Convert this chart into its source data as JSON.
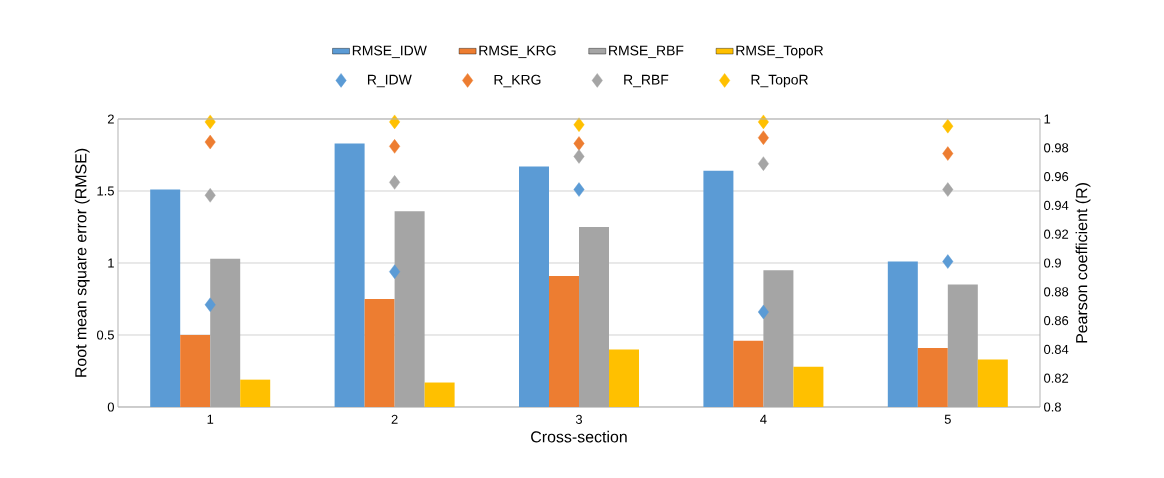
{
  "chart_data": {
    "type": "bar",
    "xlabel": "Cross-section",
    "ylabel": "Root mean square error (RMSE)",
    "y2label": "Pearson coefficient (R)",
    "categories": [
      "1",
      "2",
      "3",
      "4",
      "5"
    ],
    "series": [
      {
        "name": "RMSE_IDW",
        "color": "#5b9bd5",
        "values": [
          1.51,
          1.83,
          1.67,
          1.64,
          1.01
        ]
      },
      {
        "name": "RMSE_KRG",
        "color": "#ed7d31",
        "values": [
          0.5,
          0.75,
          0.91,
          0.46,
          0.41
        ]
      },
      {
        "name": "RMSE_RBF",
        "color": "#a5a5a5",
        "values": [
          1.03,
          1.36,
          1.25,
          0.95,
          0.85
        ]
      },
      {
        "name": "RMSE_TopoR",
        "color": "#ffc000",
        "values": [
          0.19,
          0.17,
          0.4,
          0.28,
          0.33
        ]
      },
      {
        "name": "R_IDW",
        "type": "scatter",
        "axis": "y2",
        "marker": "diamond",
        "color": "#5b9bd5",
        "values": [
          0.871,
          0.894,
          0.951,
          0.866,
          0.901
        ]
      },
      {
        "name": "R_KRG",
        "type": "scatter",
        "axis": "y2",
        "marker": "diamond",
        "color": "#ed7d31",
        "values": [
          0.984,
          0.981,
          0.983,
          0.987,
          0.976
        ]
      },
      {
        "name": "R_RBF",
        "type": "scatter",
        "axis": "y2",
        "marker": "diamond",
        "color": "#a5a5a5",
        "values": [
          0.947,
          0.956,
          0.974,
          0.969,
          0.951
        ]
      },
      {
        "name": "R_TopoR",
        "type": "scatter",
        "axis": "y2",
        "marker": "diamond",
        "color": "#ffc000",
        "values": [
          0.998,
          0.998,
          0.996,
          0.998,
          0.995
        ]
      }
    ],
    "ylim": [
      0,
      2
    ],
    "yticks": [
      0,
      0.5,
      1,
      1.5,
      2
    ],
    "y2lim": [
      0.8,
      1
    ],
    "y2ticks": [
      0.8,
      0.82,
      0.84,
      0.86,
      0.88,
      0.9,
      0.92,
      0.94,
      0.96,
      0.98,
      1
    ],
    "grid": "y",
    "legend": "top"
  }
}
